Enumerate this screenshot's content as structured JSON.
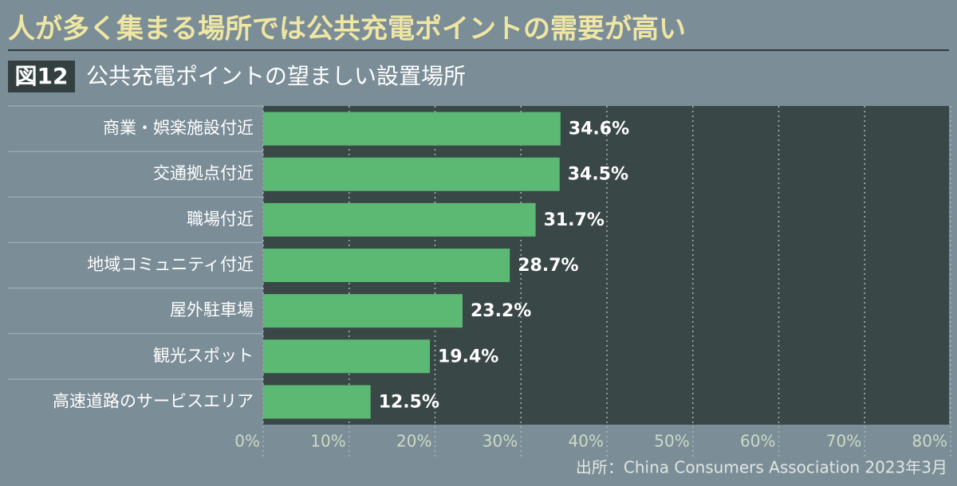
{
  "chart_data": {
    "type": "bar",
    "orientation": "horizontal",
    "headline": "人が多く集まる場所では公共充電ポイントの需要が高い",
    "figure_label": "図12",
    "title": "公共充電ポイントの望ましい設置場所",
    "source": "出所：China Consumers Association 2023年3月",
    "categories": [
      "商業・娯楽施設付近",
      "交通拠点付近",
      "職場付近",
      "地域コミュニティ付近",
      "屋外駐車場",
      "観光スポット",
      "高速道路のサービスエリア"
    ],
    "values": [
      34.6,
      34.5,
      31.7,
      28.7,
      23.2,
      19.4,
      12.5
    ],
    "value_labels": [
      "34.6%",
      "34.5%",
      "31.7%",
      "28.7%",
      "23.2%",
      "19.4%",
      "12.5%"
    ],
    "color": "#5cb974",
    "xlim": [
      0,
      80
    ],
    "xticks": [
      {
        "value": 0,
        "label": "0%"
      },
      {
        "value": 10,
        "label": "10%"
      },
      {
        "value": 20,
        "label": "20%"
      },
      {
        "value": 30,
        "label": "30%"
      },
      {
        "value": 40,
        "label": "40%"
      },
      {
        "value": 50,
        "label": "50%"
      },
      {
        "value": 60,
        "label": "60%"
      },
      {
        "value": 70,
        "label": "70%"
      },
      {
        "value": 80,
        "label": "80%"
      }
    ],
    "grid": true
  }
}
